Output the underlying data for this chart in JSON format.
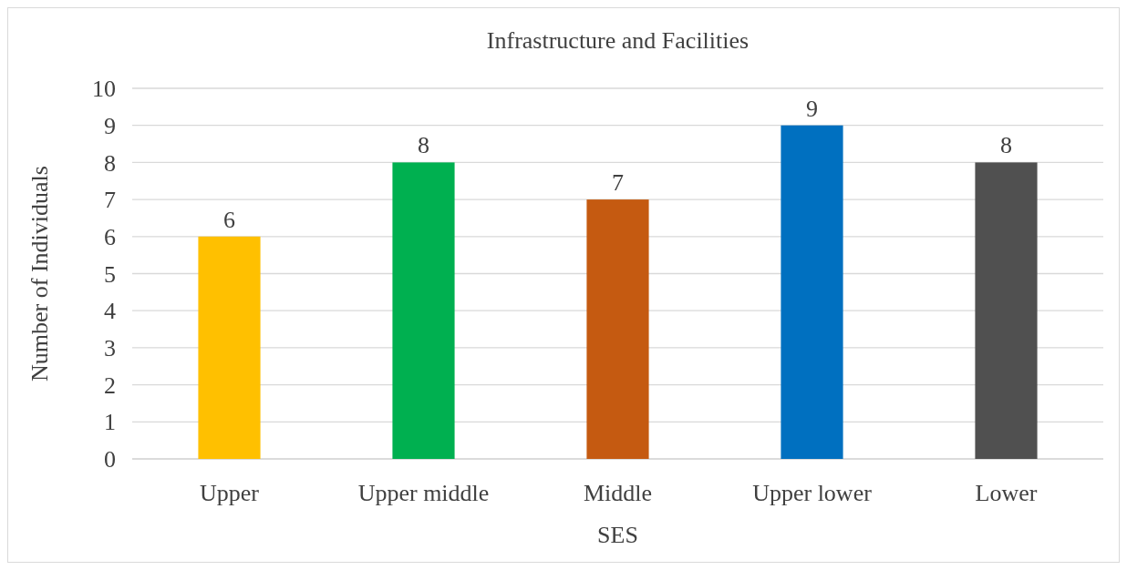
{
  "chart_data": {
    "type": "bar",
    "title": "Infrastructure and Facilities",
    "xlabel": "SES",
    "ylabel": "Number of Individuals",
    "categories": [
      "Upper",
      "Upper middle",
      "Middle",
      "Upper lower",
      "Lower"
    ],
    "values": [
      6,
      8,
      7,
      9,
      8
    ],
    "colors": [
      "#ffc000",
      "#00b050",
      "#c55a11",
      "#0070c0",
      "#505050"
    ],
    "ylim": [
      0,
      10
    ],
    "yticks": [
      0,
      1,
      2,
      3,
      4,
      5,
      6,
      7,
      8,
      9,
      10
    ],
    "grid": "y",
    "data_labels": true
  }
}
